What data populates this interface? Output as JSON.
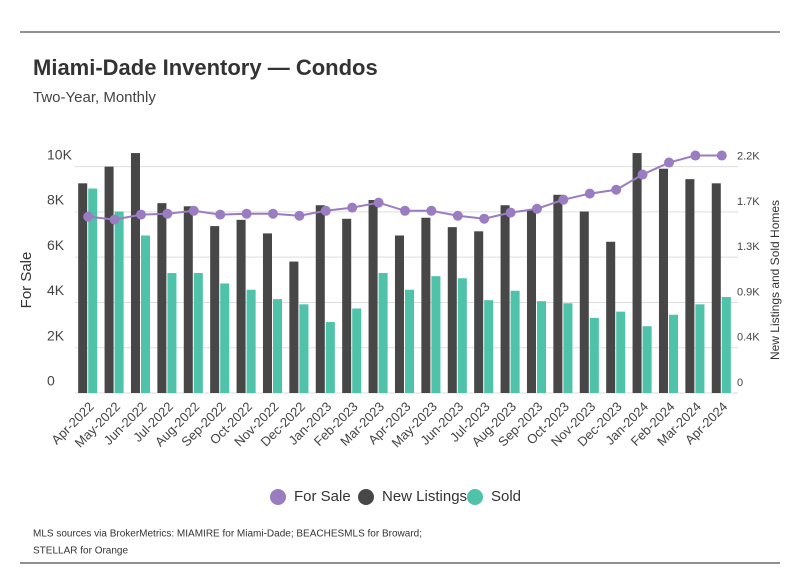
{
  "chart_data": {
    "type": "bar-line",
    "title": "Miami-Dade Inventory — Condos",
    "subtitle": "Two-Year, Monthly",
    "y_label": "For Sale",
    "y2_label": "New Listings and Sold Homes",
    "categories": [
      "Apr-2022",
      "May-2022",
      "Jun-2022",
      "Jul-2022",
      "Aug-2022",
      "Sep-2022",
      "Oct-2022",
      "Nov-2022",
      "Dec-2022",
      "Jan-2023",
      "Feb-2023",
      "Mar-2023",
      "Apr-2023",
      "May-2023",
      "Jun-2023",
      "Jul-2023",
      "Aug-2023",
      "Sep-2023",
      "Oct-2023",
      "Nov-2023",
      "Dec-2023",
      "Jan-2024",
      "Feb-2024",
      "Mar-2024",
      "Apr-2024"
    ],
    "series": [
      {
        "name": "For Sale",
        "type": "line",
        "color": "#9a7dc1",
        "values": [
          7790,
          7660,
          7880,
          7920,
          8050,
          7880,
          7920,
          7920,
          7830,
          8050,
          8190,
          8410,
          8050,
          8050,
          7830,
          7700,
          7970,
          8140,
          8540,
          8810,
          8980,
          9650,
          10180,
          10490,
          10490
        ]
      },
      {
        "name": "New Listings",
        "type": "bar",
        "axis": "y2",
        "color": "#474747",
        "values": [
          2010,
          2170,
          2300,
          1820,
          1790,
          1600,
          1660,
          1530,
          1260,
          1800,
          1670,
          1850,
          1510,
          1680,
          1590,
          1550,
          1800,
          1750,
          1900,
          1740,
          1450,
          2300,
          2150,
          2050,
          2010
        ]
      },
      {
        "name": "Sold",
        "type": "bar",
        "axis": "y2",
        "color": "#4fc2aa",
        "values": [
          1960,
          1740,
          1510,
          1150,
          1150,
          1050,
          990,
          900,
          850,
          680,
          810,
          1150,
          990,
          1120,
          1100,
          890,
          980,
          880,
          860,
          720,
          780,
          640,
          750,
          850,
          920
        ]
      }
    ],
    "ylim": [
      0,
      11000
    ],
    "yticks": [
      0,
      {
        "value": 2000,
        "label": "2K"
      },
      {
        "value": 4000,
        "label": "4K"
      },
      {
        "value": 6000,
        "label": "6K"
      },
      {
        "value": 8000,
        "label": "8K"
      },
      {
        "value": 10000,
        "label": "10K"
      }
    ],
    "y2lim": [
      0,
      2387
    ],
    "y2ticks": [
      0,
      {
        "value": 434,
        "label": "0.4K"
      },
      {
        "value": 868,
        "label": "0.9K"
      },
      {
        "value": 1302,
        "label": "1.3K"
      },
      {
        "value": 1736,
        "label": "1.7K"
      },
      {
        "value": 2170,
        "label": "2.2K"
      }
    ],
    "grid": true,
    "legend": "bottom",
    "source": [
      "MLS sources via BrokerMetrics: MIAMIRE for Miami-Dade; BEACHESMLS for Broward;",
      "STELLAR for Orange"
    ]
  }
}
